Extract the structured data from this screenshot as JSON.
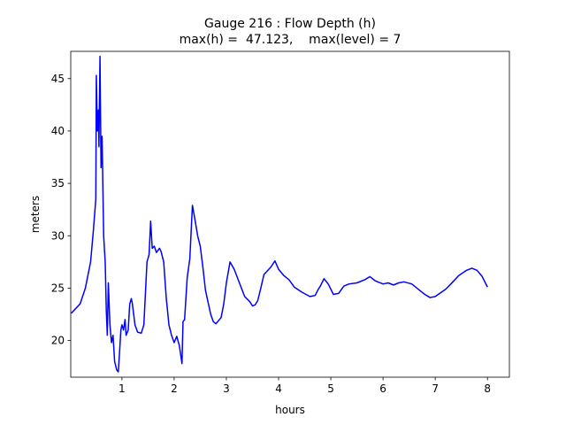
{
  "chart_data": {
    "type": "line",
    "title": "Gauge 216 : Flow Depth (h)",
    "subtitle": "max(h) =  47.123,    max(level) = 7",
    "x_label": "hours",
    "y_label": "meters",
    "color": "#0000ff",
    "x": [
      0.03,
      0.2,
      0.3,
      0.4,
      0.45,
      0.5,
      0.51,
      0.53,
      0.55,
      0.56,
      0.58,
      0.6,
      0.62,
      0.65,
      0.68,
      0.7,
      0.72,
      0.74,
      0.77,
      0.8,
      0.83,
      0.86,
      0.9,
      0.93,
      0.95,
      0.98,
      1.0,
      1.03,
      1.06,
      1.08,
      1.12,
      1.15,
      1.18,
      1.2,
      1.25,
      1.3,
      1.37,
      1.42,
      1.48,
      1.52,
      1.55,
      1.58,
      1.62,
      1.66,
      1.72,
      1.75,
      1.8,
      1.85,
      1.9,
      1.95,
      2.0,
      2.05,
      2.1,
      2.15,
      2.17,
      2.2,
      2.25,
      2.3,
      2.35,
      2.4,
      2.45,
      2.5,
      2.55,
      2.6,
      2.7,
      2.75,
      2.8,
      2.9,
      2.95,
      3.0,
      3.07,
      3.15,
      3.25,
      3.35,
      3.45,
      3.5,
      3.55,
      3.6,
      3.65,
      3.72,
      3.85,
      3.93,
      4.0,
      4.1,
      4.2,
      4.3,
      4.45,
      4.6,
      4.7,
      4.75,
      4.8,
      4.87,
      4.95,
      5.05,
      5.15,
      5.25,
      5.35,
      5.5,
      5.65,
      5.75,
      5.85,
      6.0,
      6.1,
      6.2,
      6.3,
      6.4,
      6.55,
      6.7,
      6.8,
      6.9,
      7.0,
      7.2,
      7.3,
      7.45,
      7.6,
      7.7,
      7.8,
      7.9,
      8.0
    ],
    "values": [
      22.6,
      23.5,
      25,
      27.5,
      30.3,
      33.5,
      45.3,
      40,
      42,
      38.5,
      47.123,
      36.5,
      39.5,
      30,
      27.5,
      23,
      20.5,
      25.5,
      21.5,
      19.8,
      20.5,
      18,
      17.2,
      17,
      18.5,
      21,
      21.5,
      21,
      22,
      20.5,
      21,
      23.5,
      24,
      23.5,
      21.5,
      20.8,
      20.7,
      21.5,
      27.5,
      28.2,
      31.4,
      28.8,
      29,
      28.4,
      28.8,
      28.5,
      27.5,
      24,
      21.5,
      20.5,
      19.8,
      20.4,
      19.5,
      17.8,
      21.8,
      22,
      26,
      27.8,
      32.9,
      31.5,
      30,
      29,
      27,
      24.8,
      22.5,
      21.8,
      21.6,
      22.2,
      23.5,
      25.5,
      27.5,
      26.8,
      25.5,
      24.2,
      23.7,
      23.3,
      23.4,
      23.8,
      24.8,
      26.3,
      27,
      27.6,
      26.8,
      26.2,
      25.8,
      25.1,
      24.6,
      24.2,
      24.3,
      24.8,
      25.2,
      25.9,
      25.4,
      24.4,
      24.5,
      25.2,
      25.4,
      25.5,
      25.8,
      26.1,
      25.7,
      25.4,
      25.5,
      25.3,
      25.5,
      25.6,
      25.4,
      24.8,
      24.4,
      24.1,
      24.2,
      24.9,
      25.4,
      26.2,
      26.7,
      26.9,
      26.7,
      26.1,
      25.1
    ],
    "xlim": [
      0.02,
      8.42
    ],
    "ylim": [
      16.5,
      47.6
    ],
    "xticks": [
      1,
      2,
      3,
      4,
      5,
      6,
      7,
      8
    ],
    "yticks": [
      20,
      25,
      30,
      35,
      40,
      45
    ]
  }
}
